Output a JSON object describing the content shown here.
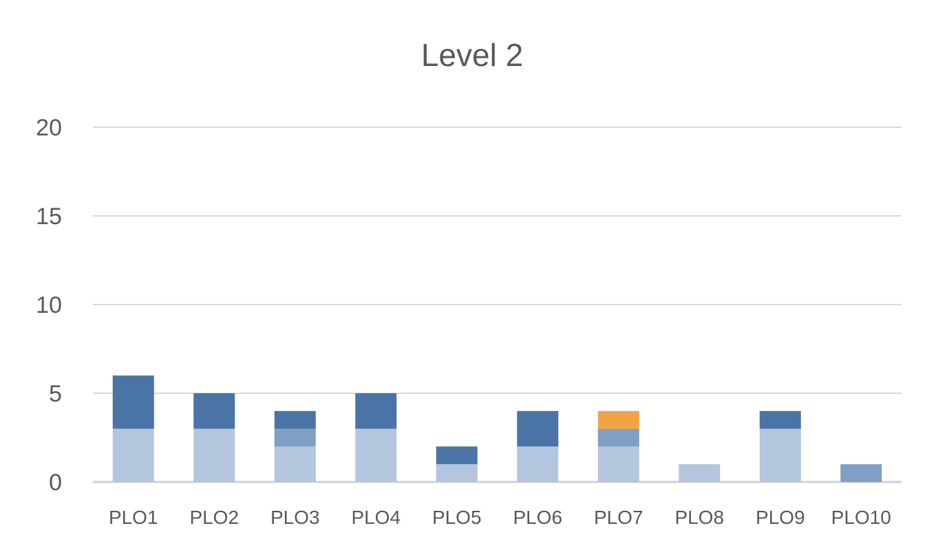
{
  "chart_data": {
    "type": "bar",
    "stacked": true,
    "title": "Level 2",
    "xlabel": "",
    "ylabel": "",
    "ylim": [
      0,
      20
    ],
    "yticks": [
      0,
      5,
      10,
      15,
      20
    ],
    "grid": true,
    "legend": "none",
    "categories": [
      "PLO1",
      "PLO2",
      "PLO3",
      "PLO4",
      "PLO5",
      "PLO6",
      "PLO7",
      "PLO8",
      "PLO9",
      "PLO10"
    ],
    "series": [
      {
        "color": "#b3c6dd",
        "values": [
          3,
          3,
          2,
          3,
          1,
          2,
          2,
          1,
          3,
          0
        ]
      },
      {
        "color": "#7f9fc4",
        "values": [
          0,
          0,
          1,
          0,
          0,
          0,
          1,
          0,
          0,
          1
        ]
      },
      {
        "color": "#4a74a6",
        "values": [
          3,
          2,
          1,
          2,
          1,
          2,
          0,
          0,
          1,
          0
        ]
      },
      {
        "color": "#f2a444",
        "values": [
          0,
          0,
          0,
          0,
          0,
          0,
          1,
          0,
          0,
          0
        ]
      }
    ]
  }
}
